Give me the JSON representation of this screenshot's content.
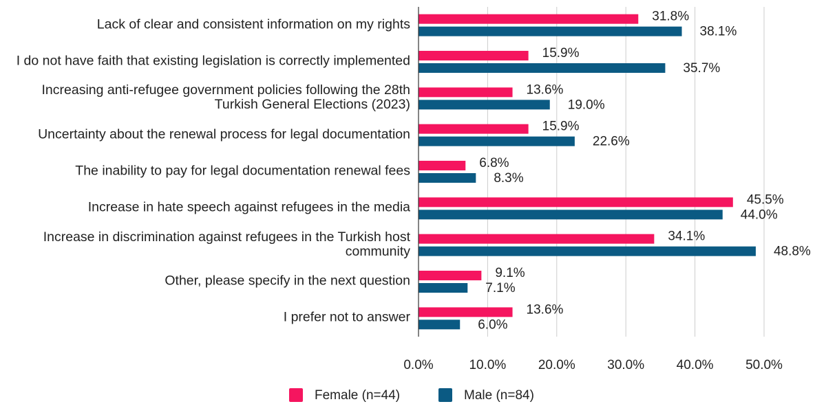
{
  "chart_data": {
    "type": "bar",
    "orientation": "horizontal",
    "categories": [
      "Lack of clear and consistent information on my rights",
      "I do not have faith that existing legislation is correctly implemented",
      "Increasing anti-refugee government policies following the 28th Turkish General Elections (2023)",
      "Uncertainty about the renewal process for legal documentation",
      "The inability to pay for legal documentation renewal fees",
      "Increase in hate speech against refugees in the media",
      "Increase in discrimination against refugees in the Turkish host community",
      "Other, please specify in the next question",
      "I prefer not to answer"
    ],
    "series": [
      {
        "name": "Female (n=44)",
        "color": "#f5155f",
        "values": [
          31.8,
          15.9,
          13.6,
          15.9,
          6.8,
          45.5,
          34.1,
          9.1,
          13.6
        ],
        "value_labels": [
          "31.8%",
          "15.9%",
          "13.6%",
          "15.9%",
          "6.8%",
          "45.5%",
          "34.1%",
          "9.1%",
          "13.6%"
        ]
      },
      {
        "name": "Male (n=84)",
        "color": "#0b5a83",
        "values": [
          38.1,
          35.7,
          19.0,
          22.6,
          8.3,
          44.0,
          48.8,
          7.1,
          6.0
        ],
        "value_labels": [
          "38.1%",
          "35.7%",
          "19.0%",
          "22.6%",
          "8.3%",
          "44.0%",
          "48.8%",
          "7.1%",
          "6.0%"
        ]
      }
    ],
    "xlim": [
      0,
      50
    ],
    "xticks": [
      {
        "value": 0,
        "label": "0.0%"
      },
      {
        "value": 10,
        "label": "10.0%"
      },
      {
        "value": 20,
        "label": "20.0%"
      },
      {
        "value": 30,
        "label": "30.0%"
      },
      {
        "value": 40,
        "label": "40.0%"
      },
      {
        "value": 50,
        "label": "50.0%"
      }
    ],
    "grid": true,
    "legend": "bottom"
  }
}
